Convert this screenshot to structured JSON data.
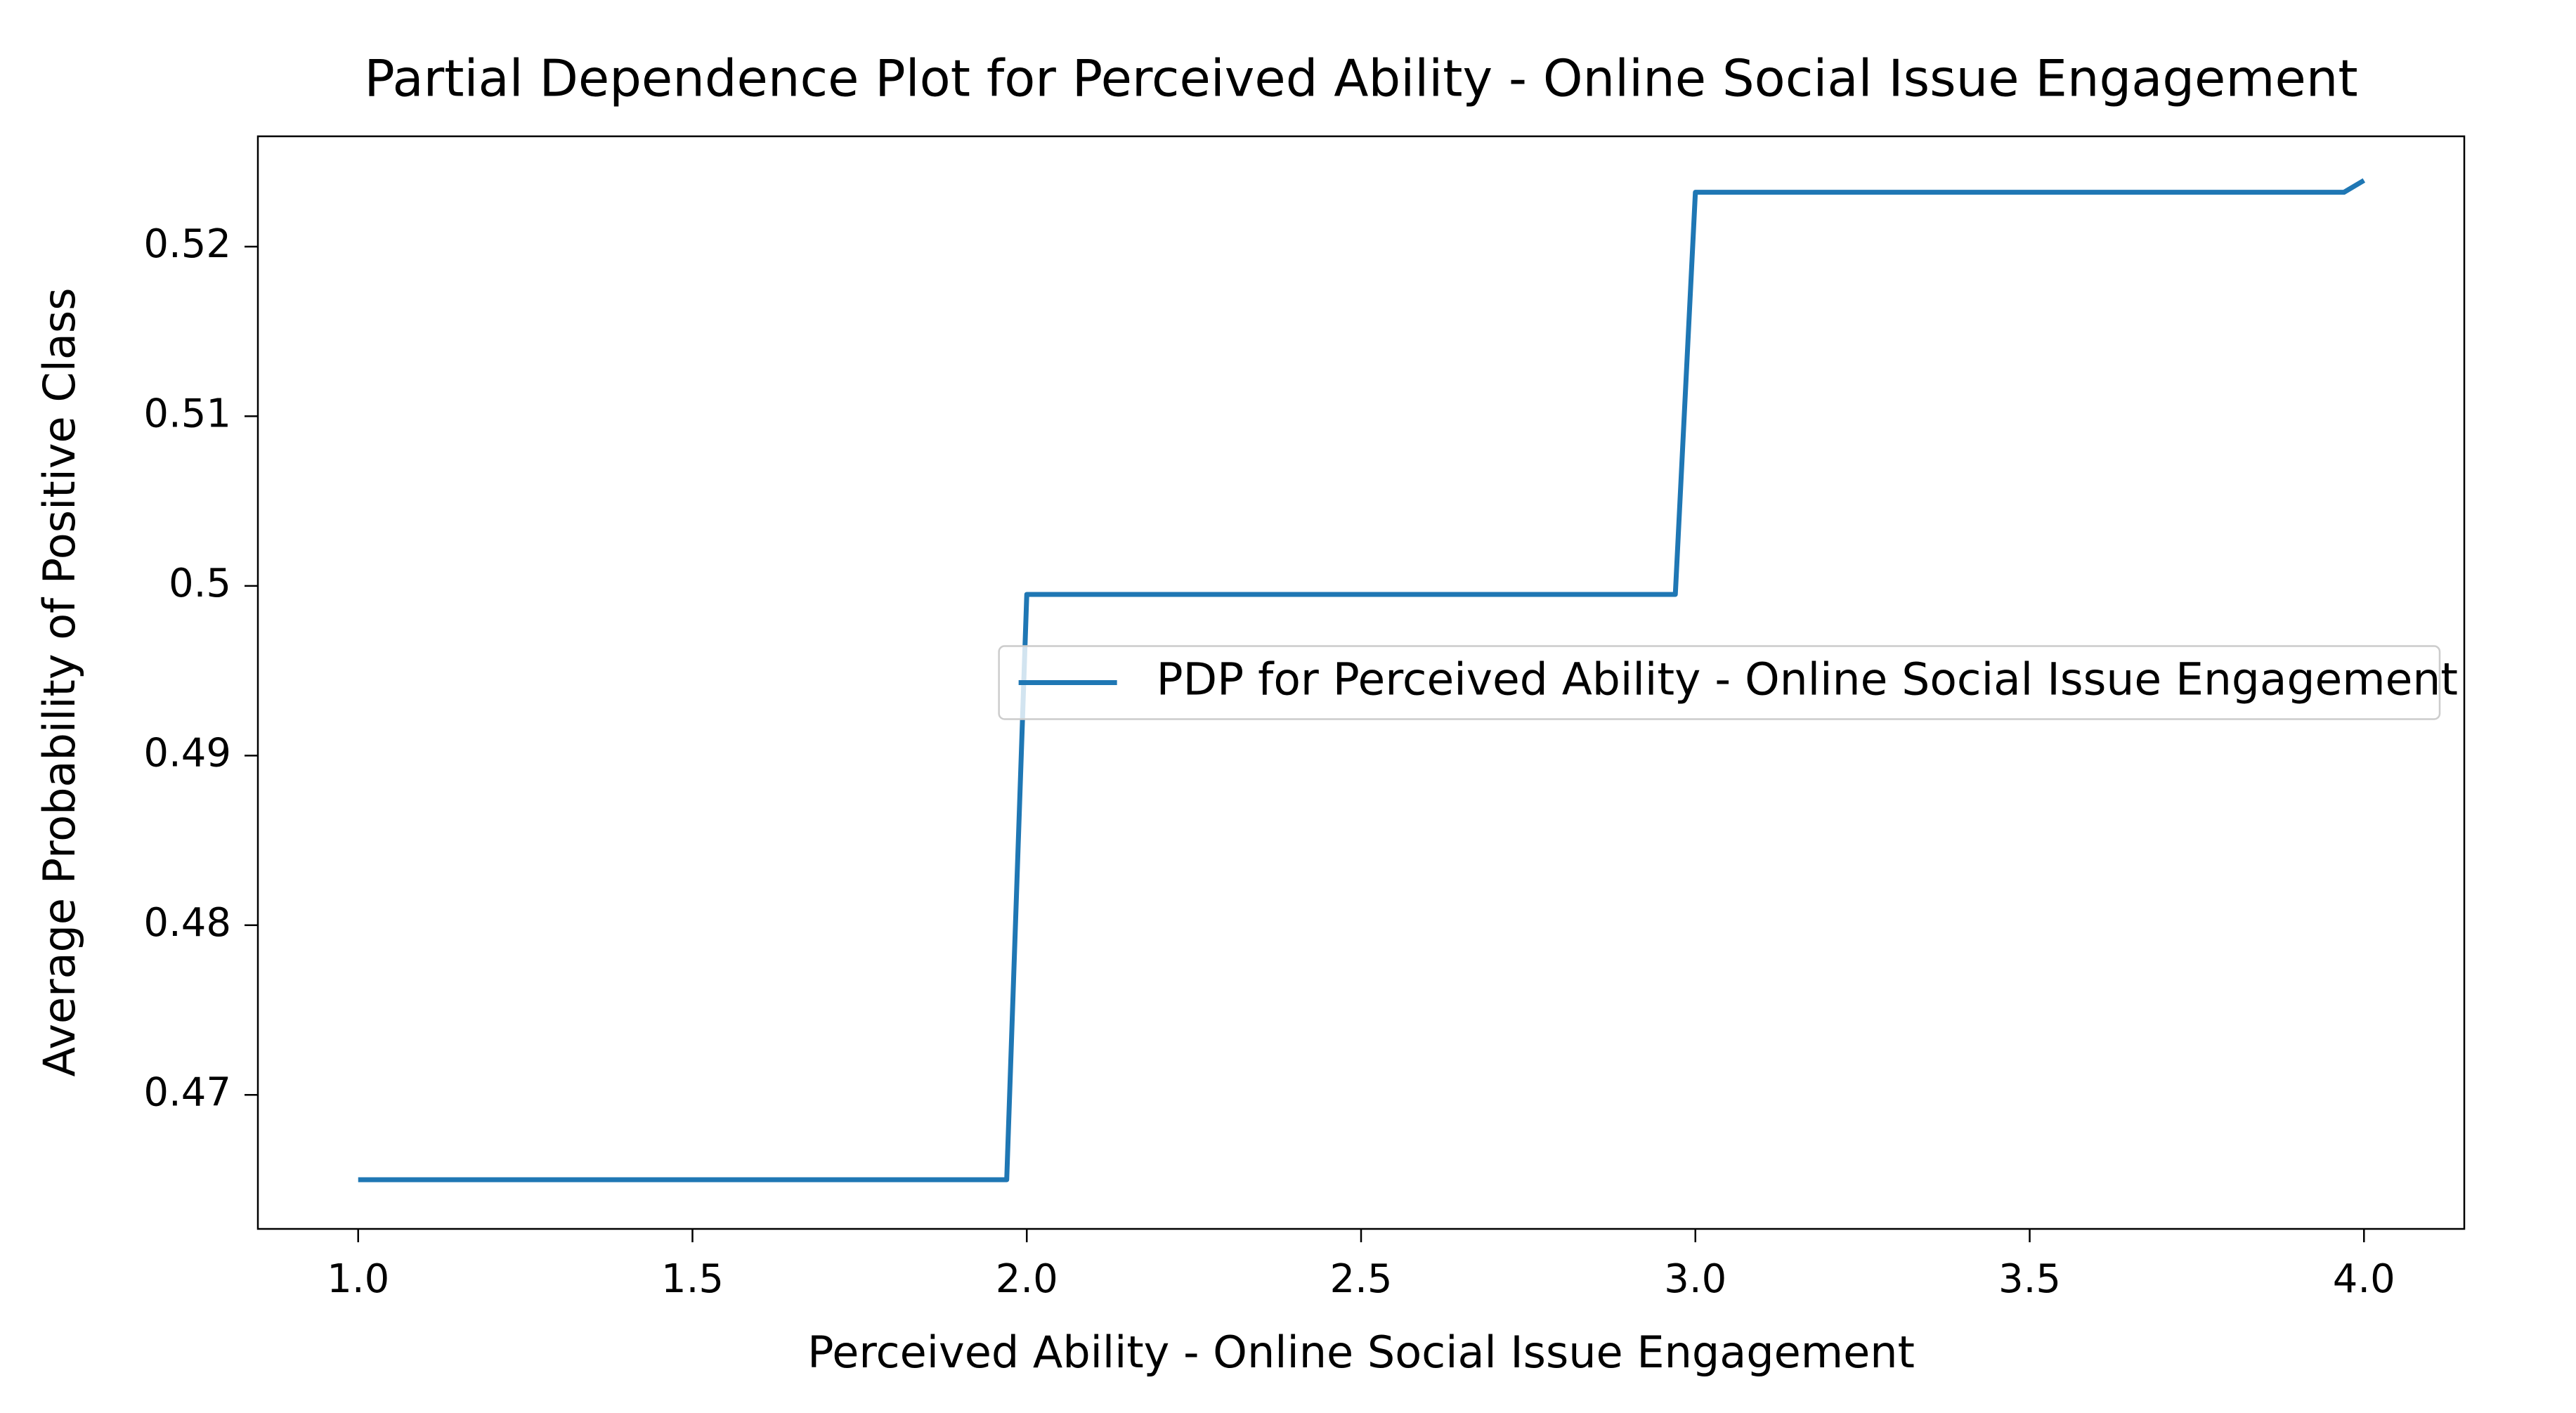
{
  "chart_data": {
    "type": "line",
    "title": "Partial Dependence Plot for Perceived Ability - Online Social Issue Engagement",
    "x_label": "Perceived Ability - Online Social Issue Engagement",
    "y_label": "Average Probability of Positive Class",
    "x": [
      1.0,
      1.97,
      2.0,
      2.97,
      3.0,
      3.97,
      4.0
    ],
    "series": [
      {
        "name": "PDP for Perceived Ability - Online Social Issue Engagement",
        "color": "#1f77b4",
        "values": [
          0.465,
          0.465,
          0.4995,
          0.4995,
          0.5232,
          0.5232,
          0.5239
        ]
      }
    ],
    "xlim": [
      0.85,
      4.15
    ],
    "ylim": [
      0.4621,
      0.5265
    ],
    "xticks": [
      {
        "value": 1,
        "label": "1.0"
      },
      {
        "value": 1.5,
        "label": "1.5"
      },
      {
        "value": 2,
        "label": "2.0"
      },
      {
        "value": 2.5,
        "label": "2.5"
      },
      {
        "value": 3,
        "label": "3.0"
      },
      {
        "value": 3.5,
        "label": "3.5"
      },
      {
        "value": 4,
        "label": "4.0"
      }
    ],
    "yticks": [
      0.47,
      0.48,
      0.49,
      0.5,
      0.51,
      0.52
    ],
    "grid": false,
    "legend_loc": "center right"
  }
}
